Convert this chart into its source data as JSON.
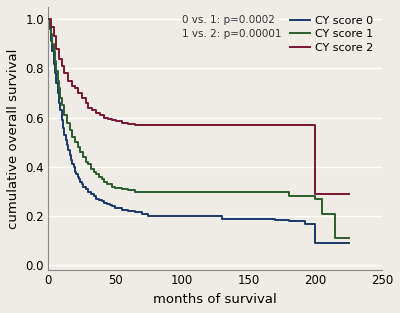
{
  "xlabel": "months of survival",
  "ylabel": "cumulative overall survival",
  "xlim": [
    0,
    250
  ],
  "ylim": [
    -0.02,
    1.05
  ],
  "xticks": [
    0,
    50,
    100,
    150,
    200,
    250
  ],
  "yticks": [
    0.0,
    0.2,
    0.4,
    0.6,
    0.8,
    1.0
  ],
  "annotation": "0 vs. 1: p=0.0002\n1 vs. 2: p=0.00001",
  "colors": {
    "score0": "#1a3a6b",
    "score1": "#2a5e2a",
    "score2": "#7a1535"
  },
  "score0": {
    "x": [
      0,
      1,
      2,
      3,
      4,
      5,
      6,
      7,
      8,
      9,
      10,
      11,
      12,
      13,
      14,
      15,
      16,
      17,
      18,
      19,
      20,
      21,
      22,
      23,
      24,
      25,
      26,
      28,
      30,
      32,
      34,
      36,
      38,
      40,
      42,
      44,
      46,
      48,
      50,
      55,
      60,
      65,
      70,
      75,
      80,
      90,
      100,
      110,
      120,
      130,
      140,
      145,
      150,
      160,
      170,
      180,
      190,
      192,
      195,
      198,
      200,
      205,
      210,
      215,
      220,
      225
    ],
    "y": [
      1.0,
      0.96,
      0.91,
      0.87,
      0.82,
      0.78,
      0.74,
      0.7,
      0.66,
      0.63,
      0.59,
      0.56,
      0.53,
      0.51,
      0.49,
      0.47,
      0.45,
      0.43,
      0.41,
      0.4,
      0.38,
      0.37,
      0.36,
      0.35,
      0.34,
      0.33,
      0.32,
      0.31,
      0.3,
      0.29,
      0.28,
      0.27,
      0.265,
      0.26,
      0.255,
      0.25,
      0.245,
      0.24,
      0.235,
      0.225,
      0.22,
      0.215,
      0.21,
      0.2,
      0.2,
      0.2,
      0.2,
      0.2,
      0.2,
      0.19,
      0.19,
      0.19,
      0.19,
      0.19,
      0.185,
      0.18,
      0.18,
      0.17,
      0.17,
      0.17,
      0.09,
      0.09,
      0.09,
      0.09,
      0.09,
      0.09
    ]
  },
  "score1": {
    "x": [
      0,
      1,
      2,
      3,
      4,
      5,
      6,
      7,
      8,
      9,
      10,
      12,
      14,
      16,
      18,
      20,
      22,
      24,
      26,
      28,
      30,
      32,
      34,
      36,
      38,
      40,
      42,
      44,
      46,
      48,
      50,
      55,
      60,
      65,
      70,
      75,
      80,
      90,
      100,
      110,
      120,
      130,
      140,
      150,
      160,
      170,
      180,
      190,
      195,
      200,
      205,
      210,
      215,
      220,
      225
    ],
    "y": [
      1.0,
      0.97,
      0.94,
      0.9,
      0.87,
      0.83,
      0.79,
      0.75,
      0.72,
      0.68,
      0.65,
      0.61,
      0.58,
      0.55,
      0.52,
      0.5,
      0.48,
      0.46,
      0.44,
      0.42,
      0.41,
      0.39,
      0.38,
      0.37,
      0.36,
      0.35,
      0.34,
      0.33,
      0.33,
      0.32,
      0.315,
      0.31,
      0.305,
      0.3,
      0.3,
      0.3,
      0.3,
      0.3,
      0.3,
      0.3,
      0.3,
      0.3,
      0.3,
      0.3,
      0.3,
      0.3,
      0.28,
      0.28,
      0.28,
      0.27,
      0.21,
      0.21,
      0.11,
      0.11,
      0.11
    ]
  },
  "score2": {
    "x": [
      0,
      2,
      4,
      6,
      8,
      10,
      12,
      15,
      18,
      20,
      22,
      25,
      28,
      30,
      33,
      36,
      39,
      42,
      45,
      48,
      51,
      55,
      60,
      65,
      70,
      80,
      90,
      100,
      110,
      120,
      130,
      140,
      150,
      160,
      170,
      180,
      185,
      190,
      191,
      195,
      200,
      210,
      215,
      220,
      225
    ],
    "y": [
      1.0,
      0.97,
      0.93,
      0.88,
      0.84,
      0.81,
      0.78,
      0.75,
      0.73,
      0.72,
      0.7,
      0.68,
      0.66,
      0.64,
      0.63,
      0.62,
      0.61,
      0.6,
      0.595,
      0.59,
      0.585,
      0.58,
      0.575,
      0.57,
      0.57,
      0.57,
      0.57,
      0.57,
      0.57,
      0.57,
      0.57,
      0.57,
      0.57,
      0.57,
      0.57,
      0.57,
      0.57,
      0.57,
      0.57,
      0.57,
      0.29,
      0.29,
      0.29,
      0.29,
      0.29
    ]
  },
  "background_color": "#eeece4",
  "grid_color": "#ffffff",
  "annotation_fontsize": 7.5,
  "label_fontsize": 9.5,
  "tick_fontsize": 8.5,
  "legend_fontsize": 8.0,
  "linewidth": 1.4
}
